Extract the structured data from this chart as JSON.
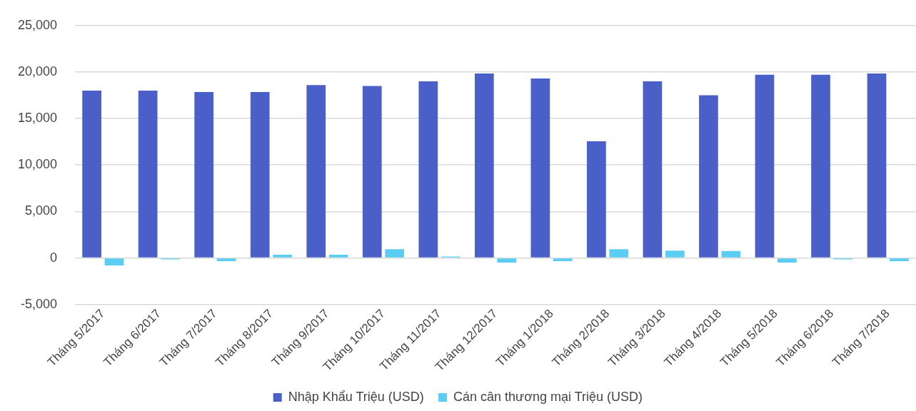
{
  "chart_data": {
    "type": "bar",
    "categories": [
      "Tháng 5/2017",
      "Tháng 6/2017",
      "Tháng 7/2017",
      "Tháng 8/2017",
      "Tháng 9/2017",
      "Tháng 10/2017",
      "Tháng 11/2017",
      "Tháng 12/2017",
      "Tháng 1/2018",
      "Tháng 2/2018",
      "Tháng 3/2018",
      "Tháng 4/2018",
      "Tháng 5/2018",
      "Tháng 6/2018",
      "Tháng 7/2018"
    ],
    "series": [
      {
        "name": "Nhập Khẩu Triệu (USD)",
        "color": "#4a60c8",
        "values": [
          18000,
          18000,
          17850,
          17850,
          18600,
          18500,
          19000,
          19850,
          19300,
          12550,
          19000,
          17500,
          19700,
          19700,
          19850
        ]
      },
      {
        "name": "Cán cân thương mại Triệu (USD)",
        "color": "#5bcdf2",
        "values": [
          -800,
          -150,
          -350,
          350,
          350,
          950,
          150,
          -500,
          -350,
          950,
          800,
          750,
          -500,
          -150,
          -350
        ]
      }
    ],
    "ylim": [
      -5000,
      25000
    ],
    "yticks": [
      {
        "value": -5000,
        "label": "-5,000"
      },
      0,
      {
        "value": 5000,
        "label": "5,000"
      },
      {
        "value": 10000,
        "label": "10,000"
      },
      {
        "value": 15000,
        "label": "15,000"
      },
      {
        "value": 20000,
        "label": "20,000"
      },
      {
        "value": 25000,
        "label": "25,000"
      }
    ],
    "grid": "y",
    "legend": "bottom"
  }
}
